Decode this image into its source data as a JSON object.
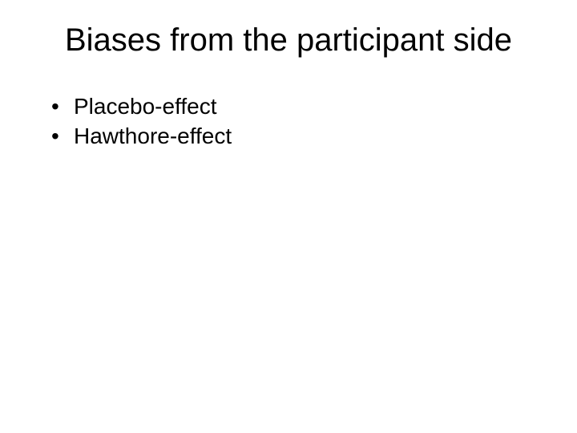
{
  "slide": {
    "title": "Biases from the participant side",
    "bullets": [
      "Placebo-effect",
      "Hawthore-effect"
    ],
    "style": {
      "background_color": "#ffffff",
      "text_color": "#000000",
      "title_fontsize": 40,
      "title_fontweight": 400,
      "bullet_fontsize": 28,
      "bullet_fontweight": 400,
      "font_family": "Arial"
    }
  }
}
